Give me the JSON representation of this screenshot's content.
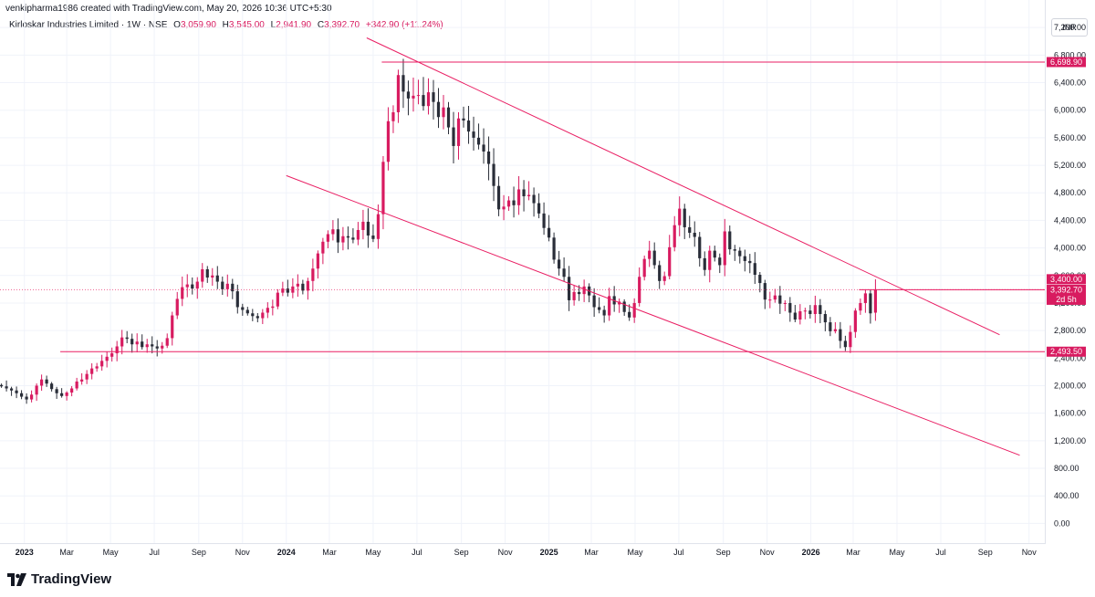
{
  "header": {
    "credit": "venkipharma1986 created with TradingView.com, May 20, 2026 10:36 UTC+5:30",
    "symbol": "Kirloskar Industries Limited · 1W · NSE",
    "ohlc": {
      "o_label": "O",
      "o": "3,059.90",
      "h_label": "H",
      "h": "3,545.00",
      "l_label": "L",
      "l": "2,941.90",
      "c_label": "C",
      "c": "3,392.70",
      "change": "+342.90 (+11.24%)"
    }
  },
  "currency": "INR",
  "brand": {
    "name": "TradingView"
  },
  "colors": {
    "up": "#d81b60",
    "down": "#2a2e39",
    "line": "#e91e63",
    "grid": "#f0f3fa"
  },
  "chart_data": {
    "type": "candlestick",
    "interval": "1W",
    "ylim": [
      -300,
      7600
    ],
    "y_ticks": [
      0,
      400,
      800,
      1200,
      1600,
      2000,
      2400,
      2800,
      3200,
      3600,
      4000,
      4400,
      4800,
      5200,
      5600,
      6000,
      6400,
      6800,
      7200
    ],
    "y_tick_labels": [
      "0.00",
      "400.00",
      "800.00",
      "1,200.00",
      "1,600.00",
      "2,000.00",
      "2,400.00",
      "2,800.00",
      "3,200.00",
      "3,600.00",
      "4,000.00",
      "4,400.00",
      "4,800.00",
      "5,200.00",
      "5,600.00",
      "6,000.00",
      "6,400.00",
      "6,800.00",
      "7,200.00"
    ],
    "x_range": [
      "2022-11-28",
      "2026-11-23"
    ],
    "x_ticks": [
      {
        "date": "2023-01-01",
        "label": "2023",
        "year": true
      },
      {
        "date": "2023-03-01",
        "label": "Mar"
      },
      {
        "date": "2023-05-01",
        "label": "May"
      },
      {
        "date": "2023-07-01",
        "label": "Jul"
      },
      {
        "date": "2023-09-01",
        "label": "Sep"
      },
      {
        "date": "2023-11-01",
        "label": "Nov"
      },
      {
        "date": "2024-01-01",
        "label": "2024",
        "year": true
      },
      {
        "date": "2024-03-01",
        "label": "Mar"
      },
      {
        "date": "2024-05-01",
        "label": "May"
      },
      {
        "date": "2024-07-01",
        "label": "Jul"
      },
      {
        "date": "2024-09-01",
        "label": "Sep"
      },
      {
        "date": "2024-11-01",
        "label": "Nov"
      },
      {
        "date": "2025-01-01",
        "label": "2025",
        "year": true
      },
      {
        "date": "2025-03-01",
        "label": "Mar"
      },
      {
        "date": "2025-05-01",
        "label": "May"
      },
      {
        "date": "2025-07-01",
        "label": "Jul"
      },
      {
        "date": "2025-09-01",
        "label": "Sep"
      },
      {
        "date": "2025-11-01",
        "label": "Nov"
      },
      {
        "date": "2026-01-01",
        "label": "2026",
        "year": true
      },
      {
        "date": "2026-03-01",
        "label": "Mar"
      },
      {
        "date": "2026-05-01",
        "label": "May"
      },
      {
        "date": "2026-07-01",
        "label": "Jul"
      },
      {
        "date": "2026-09-01",
        "label": "Sep"
      },
      {
        "date": "2026-11-01",
        "label": "Nov"
      }
    ],
    "start_week": "2022-11-28",
    "closes": [
      1990,
      1960,
      1930,
      1890,
      1840,
      1800,
      1870,
      2000,
      2090,
      2030,
      1950,
      1890,
      1850,
      1900,
      1960,
      2060,
      2090,
      2170,
      2250,
      2280,
      2360,
      2420,
      2470,
      2570,
      2700,
      2680,
      2600,
      2640,
      2560,
      2600,
      2570,
      2540,
      2580,
      2690,
      3020,
      3260,
      3430,
      3470,
      3410,
      3510,
      3690,
      3570,
      3600,
      3510,
      3400,
      3480,
      3370,
      3140,
      3100,
      3050,
      3010,
      2980,
      3060,
      3130,
      3150,
      3350,
      3410,
      3350,
      3440,
      3480,
      3380,
      3520,
      3700,
      3920,
      4090,
      4200,
      4270,
      4080,
      4170,
      4150,
      4120,
      4260,
      4380,
      4180,
      4130,
      4490,
      5250,
      5840,
      5970,
      6510,
      6270,
      6170,
      6210,
      6220,
      6060,
      6260,
      6120,
      5900,
      6040,
      5750,
      5480,
      5880,
      5850,
      5690,
      5600,
      5500,
      5400,
      5220,
      4900,
      4560,
      4600,
      4690,
      4620,
      4850,
      4750,
      4770,
      4650,
      4500,
      4290,
      4150,
      3830,
      3700,
      3580,
      3240,
      3360,
      3330,
      3440,
      3310,
      3140,
      3100,
      3020,
      3300,
      3180,
      3220,
      3070,
      2990,
      3200,
      3580,
      3840,
      3960,
      3750,
      3520,
      3590,
      4010,
      4330,
      4570,
      4300,
      4220,
      4160,
      3850,
      3680,
      3960,
      3860,
      3750,
      4240,
      3980,
      3960,
      3880,
      3810,
      3780,
      3610,
      3490,
      3250,
      3250,
      3310,
      3190,
      3200,
      3060,
      2960,
      3080,
      3090,
      3040,
      3170,
      3040,
      2920,
      2790,
      2820,
      2650,
      2560,
      2780,
      3090,
      3200,
      3340,
      3050,
      3390
    ],
    "last_week": {
      "open": 3059.9,
      "high": 3545.0,
      "low": 2941.9,
      "close": 3392.7
    },
    "lines": [
      {
        "type": "trend",
        "from": {
          "date": "2024-04-22",
          "y": 7050
        },
        "to": {
          "date": "2026-09-21",
          "y": 2740
        }
      },
      {
        "type": "trend",
        "from": {
          "date": "2024-01-01",
          "y": 5050
        },
        "to": {
          "date": "2026-10-19",
          "y": 990
        }
      },
      {
        "type": "horizontal",
        "y": 6698.9,
        "from_date": "2024-05-13"
      },
      {
        "type": "horizontal",
        "y": 2493.5,
        "from_date": "2023-02-20"
      },
      {
        "type": "horizontal",
        "y": 3392.7,
        "from_date": "2026-03-09"
      }
    ],
    "markers": [
      {
        "value": 3400,
        "label": "3,400.00",
        "color": "#d81b60"
      },
      {
        "value": 3392.7,
        "label": "3,392.70",
        "sub": "2d 5h",
        "color": "#d81b60"
      },
      {
        "value": 6698.9,
        "label": "6,698.90",
        "color": "#d81b60"
      },
      {
        "value": 2493.5,
        "label": "2,493.50",
        "color": "#d81b60"
      }
    ]
  }
}
